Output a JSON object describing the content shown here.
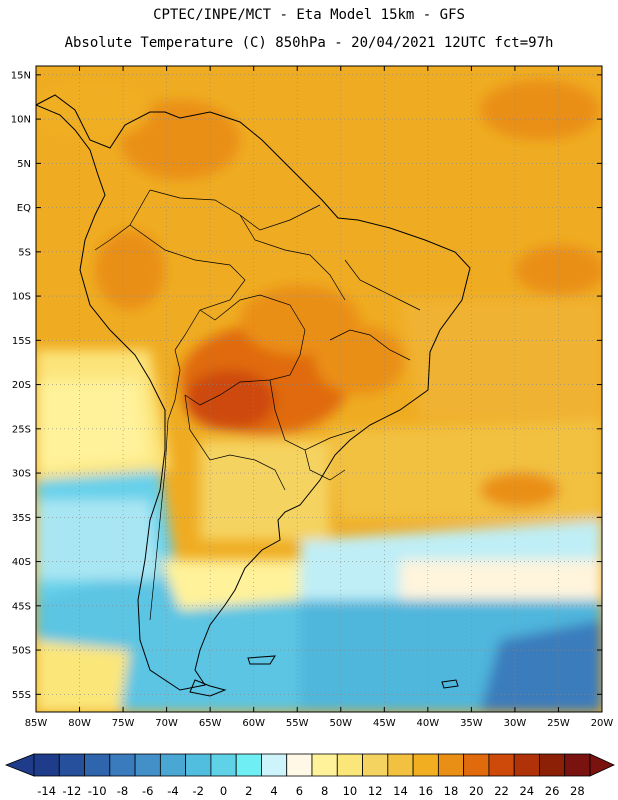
{
  "header": {
    "line1": "CPTEC/INPE/MCT -  Eta Model 15km - GFS",
    "line2": "Absolute Temperature (C) 850hPa - 20/04/2021 12UTC fct=97h"
  },
  "map": {
    "lat_labels": [
      "15N",
      "10N",
      "5N",
      "EQ",
      "5S",
      "10S",
      "15S",
      "20S",
      "25S",
      "30S",
      "35S",
      "40S",
      "45S",
      "50S",
      "55S"
    ],
    "lon_labels": [
      "85W",
      "80W",
      "75W",
      "70W",
      "65W",
      "60W",
      "55W",
      "50W",
      "45W",
      "40W",
      "35W",
      "30W",
      "25W",
      "20W"
    ],
    "extent": {
      "lon_min": -85,
      "lon_max": -20,
      "lat_min": -57,
      "lat_max": 16
    }
  },
  "colorbar": {
    "labels": [
      "-14",
      "-12",
      "-10",
      "-8",
      "-6",
      "-4",
      "-2",
      "0",
      "2",
      "4",
      "6",
      "8",
      "10",
      "12",
      "14",
      "16",
      "18",
      "20",
      "22",
      "24",
      "26",
      "28"
    ],
    "colors": [
      "#1f3c8a",
      "#26509c",
      "#2f65ad",
      "#3a7bbd",
      "#4390c8",
      "#4aa7d4",
      "#52bedf",
      "#60d2e8",
      "#6feff3",
      "#cdf3fb",
      "#fff8e6",
      "#fff29a",
      "#fbe67a",
      "#f5d360",
      "#f2c13f",
      "#f0ae20",
      "#ea8f16",
      "#e06a0c",
      "#cd4a0a",
      "#b03208",
      "#8c2007",
      "#7a1210"
    ]
  }
}
